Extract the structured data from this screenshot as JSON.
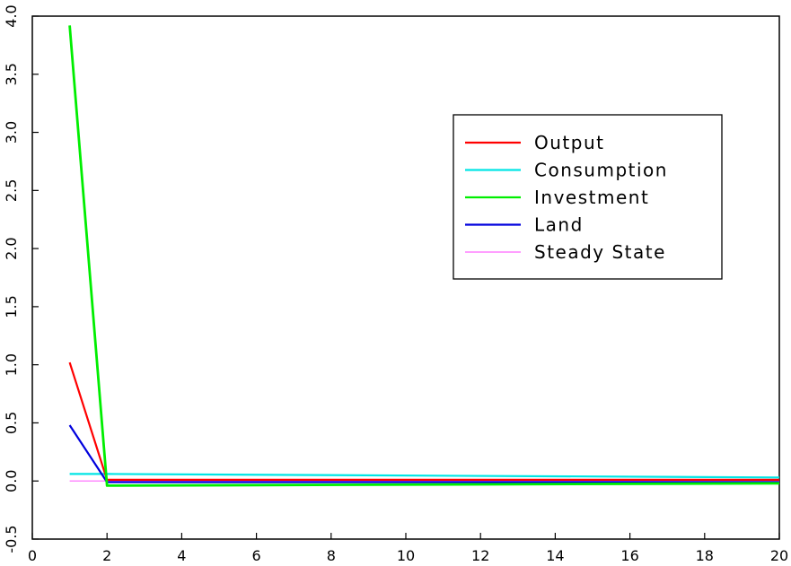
{
  "chart_data": {
    "type": "line",
    "title": "",
    "xlabel": "",
    "ylabel": "",
    "xlim": [
      0,
      20
    ],
    "ylim": [
      -0.5,
      4.0
    ],
    "x_ticks": [
      0,
      2,
      4,
      6,
      8,
      10,
      12,
      14,
      16,
      18,
      20
    ],
    "x_tick_labels": [
      "0",
      "2",
      "4",
      "6",
      "8",
      "10",
      "12",
      "14",
      "16",
      "18",
      "20"
    ],
    "y_ticks": [
      -0.5,
      0.0,
      0.5,
      1.0,
      1.5,
      2.0,
      2.5,
      3.0,
      3.5,
      4.0
    ],
    "y_tick_labels": [
      "-0.5",
      "0.0",
      "0.5",
      "1.0",
      "1.5",
      "2.0",
      "2.5",
      "3.0",
      "3.5",
      "4.0"
    ],
    "grid": false,
    "legend_position": "right",
    "series": [
      {
        "name": "Output",
        "color": "#ff0000",
        "x": [
          1,
          2,
          20
        ],
        "y": [
          1.02,
          0.01,
          0.01
        ]
      },
      {
        "name": "Consumption",
        "color": "#00e5e5",
        "x": [
          1,
          2,
          20
        ],
        "y": [
          0.06,
          0.06,
          0.03
        ]
      },
      {
        "name": "Investment",
        "color": "#00ee00",
        "x": [
          1,
          2,
          20
        ],
        "y": [
          3.92,
          -0.04,
          -0.02
        ]
      },
      {
        "name": "Land",
        "color": "#0000dd",
        "x": [
          1,
          2,
          20
        ],
        "y": [
          0.48,
          -0.01,
          -0.01
        ]
      },
      {
        "name": "Steady State",
        "color": "#ff66ff",
        "x": [
          1,
          20
        ],
        "y": [
          0.0,
          0.0
        ]
      }
    ]
  }
}
